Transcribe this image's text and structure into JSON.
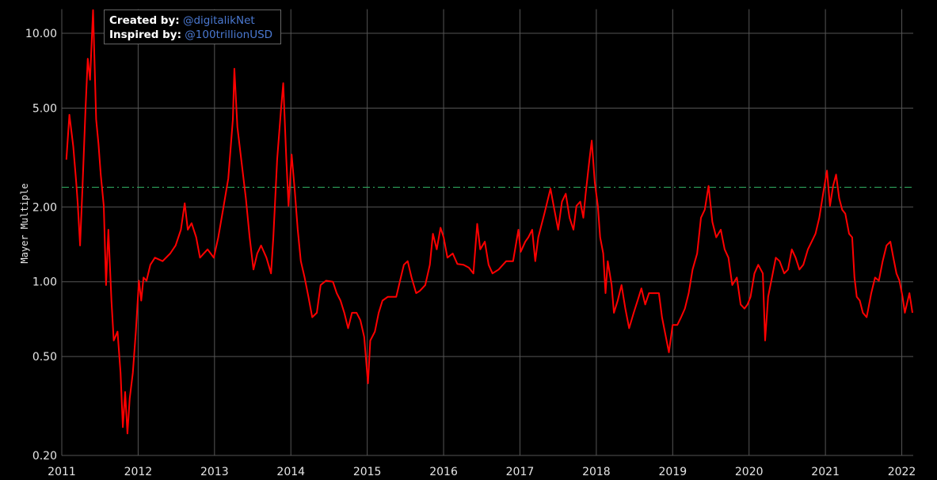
{
  "chart_data": {
    "type": "line",
    "title": "",
    "xlabel": "",
    "ylabel": "Mayer Multiple",
    "yscale": "log",
    "xlim": [
      2011,
      2022.15
    ],
    "ylim": [
      0.2,
      12.5
    ],
    "grid": true,
    "background": "#000000",
    "line_color": "#ff0000",
    "threshold": {
      "value": 2.4,
      "color": "#2ca05a",
      "style": "dash-dot"
    },
    "x_ticks": [
      "2011",
      "2012",
      "2013",
      "2014",
      "2015",
      "2016",
      "2017",
      "2018",
      "2019",
      "2020",
      "2021",
      "2022"
    ],
    "y_ticks": [
      {
        "value": 10,
        "label": "10.00"
      },
      {
        "value": 5,
        "label": "5.00"
      },
      {
        "value": 2,
        "label": "2.00"
      },
      {
        "value": 1,
        "label": "1.00"
      },
      {
        "value": 0.5,
        "label": "0.50"
      },
      {
        "value": 0.2,
        "label": "0.20"
      }
    ],
    "series": [
      {
        "points": [
          [
            2011.06,
            3.1
          ],
          [
            2011.1,
            4.7
          ],
          [
            2011.15,
            3.5
          ],
          [
            2011.19,
            2.5
          ],
          [
            2011.21,
            2.05
          ],
          [
            2011.24,
            1.4
          ],
          [
            2011.27,
            2.34
          ],
          [
            2011.31,
            4.9
          ],
          [
            2011.34,
            7.9
          ],
          [
            2011.37,
            6.5
          ],
          [
            2011.41,
            12.4
          ],
          [
            2011.45,
            4.5
          ],
          [
            2011.48,
            3.6
          ],
          [
            2011.51,
            2.7
          ],
          [
            2011.55,
            2.02
          ],
          [
            2011.58,
            0.97
          ],
          [
            2011.61,
            1.62
          ],
          [
            2011.65,
            0.84
          ],
          [
            2011.68,
            0.58
          ],
          [
            2011.73,
            0.63
          ],
          [
            2011.77,
            0.43
          ],
          [
            2011.8,
            0.26
          ],
          [
            2011.83,
            0.36
          ],
          [
            2011.86,
            0.245
          ],
          [
            2011.89,
            0.34
          ],
          [
            2011.93,
            0.43
          ],
          [
            2011.97,
            0.63
          ],
          [
            2012.01,
            1.01
          ],
          [
            2012.04,
            0.84
          ],
          [
            2012.07,
            1.04
          ],
          [
            2012.11,
            1.01
          ],
          [
            2012.16,
            1.17
          ],
          [
            2012.22,
            1.25
          ],
          [
            2012.32,
            1.21
          ],
          [
            2012.42,
            1.3
          ],
          [
            2012.49,
            1.4
          ],
          [
            2012.56,
            1.62
          ],
          [
            2012.61,
            2.07
          ],
          [
            2012.65,
            1.62
          ],
          [
            2012.7,
            1.72
          ],
          [
            2012.76,
            1.51
          ],
          [
            2012.81,
            1.25
          ],
          [
            2012.91,
            1.35
          ],
          [
            2012.99,
            1.25
          ],
          [
            2013.05,
            1.51
          ],
          [
            2013.12,
            2.02
          ],
          [
            2013.18,
            2.6
          ],
          [
            2013.24,
            4.5
          ],
          [
            2013.26,
            7.2
          ],
          [
            2013.3,
            4.2
          ],
          [
            2013.35,
            3.1
          ],
          [
            2013.41,
            2.17
          ],
          [
            2013.46,
            1.51
          ],
          [
            2013.51,
            1.12
          ],
          [
            2013.56,
            1.3
          ],
          [
            2013.61,
            1.4
          ],
          [
            2013.68,
            1.25
          ],
          [
            2013.74,
            1.08
          ],
          [
            2013.77,
            1.51
          ],
          [
            2013.82,
            3.1
          ],
          [
            2013.87,
            4.9
          ],
          [
            2013.9,
            6.3
          ],
          [
            2013.94,
            3.1
          ],
          [
            2013.97,
            2.02
          ],
          [
            2014.01,
            3.25
          ],
          [
            2014.05,
            2.34
          ],
          [
            2014.09,
            1.62
          ],
          [
            2014.13,
            1.21
          ],
          [
            2014.18,
            1.04
          ],
          [
            2014.23,
            0.87
          ],
          [
            2014.28,
            0.72
          ],
          [
            2014.34,
            0.75
          ],
          [
            2014.39,
            0.97
          ],
          [
            2014.46,
            1.01
          ],
          [
            2014.55,
            1.0
          ],
          [
            2014.6,
            0.9
          ],
          [
            2014.65,
            0.84
          ],
          [
            2014.7,
            0.75
          ],
          [
            2014.75,
            0.65
          ],
          [
            2014.8,
            0.75
          ],
          [
            2014.86,
            0.75
          ],
          [
            2014.91,
            0.7
          ],
          [
            2014.96,
            0.6
          ],
          [
            2015.01,
            0.39
          ],
          [
            2015.04,
            0.58
          ],
          [
            2015.1,
            0.63
          ],
          [
            2015.15,
            0.75
          ],
          [
            2015.2,
            0.84
          ],
          [
            2015.27,
            0.87
          ],
          [
            2015.38,
            0.87
          ],
          [
            2015.43,
            1.01
          ],
          [
            2015.48,
            1.17
          ],
          [
            2015.53,
            1.21
          ],
          [
            2015.58,
            1.04
          ],
          [
            2015.64,
            0.9
          ],
          [
            2015.69,
            0.92
          ],
          [
            2015.76,
            0.97
          ],
          [
            2015.82,
            1.17
          ],
          [
            2015.86,
            1.56
          ],
          [
            2015.91,
            1.35
          ],
          [
            2015.96,
            1.65
          ],
          [
            2016.0,
            1.51
          ],
          [
            2016.05,
            1.25
          ],
          [
            2016.12,
            1.3
          ],
          [
            2016.18,
            1.18
          ],
          [
            2016.26,
            1.17
          ],
          [
            2016.33,
            1.14
          ],
          [
            2016.39,
            1.08
          ],
          [
            2016.44,
            1.71
          ],
          [
            2016.48,
            1.35
          ],
          [
            2016.54,
            1.45
          ],
          [
            2016.59,
            1.17
          ],
          [
            2016.64,
            1.08
          ],
          [
            2016.72,
            1.12
          ],
          [
            2016.82,
            1.21
          ],
          [
            2016.91,
            1.21
          ],
          [
            2016.98,
            1.62
          ],
          [
            2017.01,
            1.32
          ],
          [
            2017.07,
            1.45
          ],
          [
            2017.11,
            1.51
          ],
          [
            2017.16,
            1.62
          ],
          [
            2017.2,
            1.21
          ],
          [
            2017.24,
            1.51
          ],
          [
            2017.32,
            1.88
          ],
          [
            2017.4,
            2.37
          ],
          [
            2017.45,
            1.95
          ],
          [
            2017.5,
            1.62
          ],
          [
            2017.55,
            2.1
          ],
          [
            2017.6,
            2.26
          ],
          [
            2017.65,
            1.81
          ],
          [
            2017.7,
            1.62
          ],
          [
            2017.74,
            2.02
          ],
          [
            2017.79,
            2.1
          ],
          [
            2017.83,
            1.81
          ],
          [
            2017.86,
            2.26
          ],
          [
            2017.91,
            3.1
          ],
          [
            2017.94,
            3.7
          ],
          [
            2017.98,
            2.5
          ],
          [
            2018.02,
            2.02
          ],
          [
            2018.05,
            1.51
          ],
          [
            2018.09,
            1.3
          ],
          [
            2018.12,
            0.9
          ],
          [
            2018.15,
            1.21
          ],
          [
            2018.2,
            0.97
          ],
          [
            2018.23,
            0.75
          ],
          [
            2018.28,
            0.84
          ],
          [
            2018.33,
            0.97
          ],
          [
            2018.38,
            0.78
          ],
          [
            2018.43,
            0.65
          ],
          [
            2018.49,
            0.75
          ],
          [
            2018.54,
            0.84
          ],
          [
            2018.59,
            0.94
          ],
          [
            2018.64,
            0.81
          ],
          [
            2018.69,
            0.9
          ],
          [
            2018.76,
            0.9
          ],
          [
            2018.82,
            0.9
          ],
          [
            2018.86,
            0.72
          ],
          [
            2018.92,
            0.58
          ],
          [
            2018.95,
            0.52
          ],
          [
            2019.0,
            0.67
          ],
          [
            2019.06,
            0.67
          ],
          [
            2019.11,
            0.72
          ],
          [
            2019.16,
            0.78
          ],
          [
            2019.21,
            0.9
          ],
          [
            2019.26,
            1.12
          ],
          [
            2019.32,
            1.3
          ],
          [
            2019.37,
            1.81
          ],
          [
            2019.42,
            1.95
          ],
          [
            2019.47,
            2.43
          ],
          [
            2019.52,
            1.74
          ],
          [
            2019.57,
            1.51
          ],
          [
            2019.63,
            1.62
          ],
          [
            2019.68,
            1.35
          ],
          [
            2019.73,
            1.25
          ],
          [
            2019.78,
            0.97
          ],
          [
            2019.84,
            1.04
          ],
          [
            2019.89,
            0.81
          ],
          [
            2019.94,
            0.78
          ],
          [
            2019.98,
            0.81
          ],
          [
            2020.02,
            0.87
          ],
          [
            2020.07,
            1.08
          ],
          [
            2020.12,
            1.17
          ],
          [
            2020.18,
            1.08
          ],
          [
            2020.21,
            0.58
          ],
          [
            2020.25,
            0.87
          ],
          [
            2020.3,
            1.04
          ],
          [
            2020.35,
            1.25
          ],
          [
            2020.4,
            1.21
          ],
          [
            2020.46,
            1.08
          ],
          [
            2020.51,
            1.12
          ],
          [
            2020.56,
            1.35
          ],
          [
            2020.61,
            1.25
          ],
          [
            2020.66,
            1.12
          ],
          [
            2020.71,
            1.17
          ],
          [
            2020.77,
            1.35
          ],
          [
            2020.82,
            1.45
          ],
          [
            2020.87,
            1.56
          ],
          [
            2020.92,
            1.81
          ],
          [
            2020.97,
            2.26
          ],
          [
            2021.02,
            2.8
          ],
          [
            2021.06,
            2.02
          ],
          [
            2021.1,
            2.43
          ],
          [
            2021.14,
            2.7
          ],
          [
            2021.18,
            2.17
          ],
          [
            2021.22,
            1.95
          ],
          [
            2021.26,
            1.88
          ],
          [
            2021.31,
            1.56
          ],
          [
            2021.35,
            1.51
          ],
          [
            2021.38,
            1.04
          ],
          [
            2021.41,
            0.87
          ],
          [
            2021.45,
            0.84
          ],
          [
            2021.49,
            0.75
          ],
          [
            2021.54,
            0.72
          ],
          [
            2021.6,
            0.9
          ],
          [
            2021.65,
            1.04
          ],
          [
            2021.7,
            1.01
          ],
          [
            2021.75,
            1.21
          ],
          [
            2021.8,
            1.4
          ],
          [
            2021.85,
            1.45
          ],
          [
            2021.89,
            1.25
          ],
          [
            2021.93,
            1.08
          ],
          [
            2021.97,
            1.01
          ],
          [
            2022.01,
            0.87
          ],
          [
            2022.04,
            0.75
          ],
          [
            2022.1,
            0.9
          ],
          [
            2022.14,
            0.75
          ]
        ]
      }
    ]
  },
  "legend": {
    "created_label": "Created by:",
    "created_handle": "@digitalikNet",
    "inspired_label": "Inspired by:",
    "inspired_handle": "@100trillionUSD"
  }
}
